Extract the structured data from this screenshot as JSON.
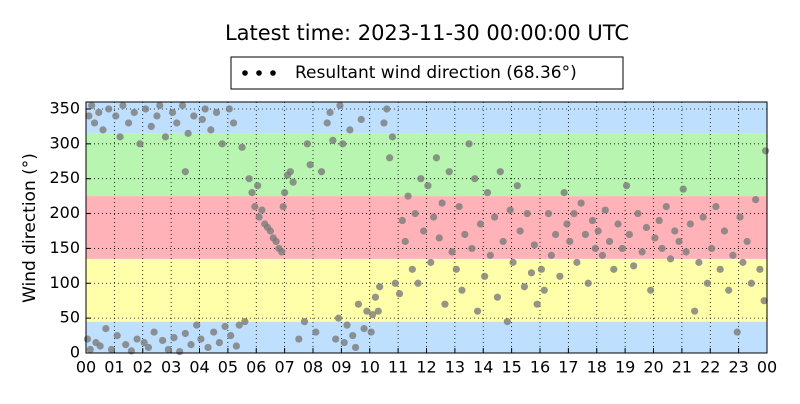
{
  "chart_data": {
    "type": "scatter",
    "title": "Latest time: 2023-11-30 00:00:00 UTC",
    "ylabel": "Wind direction (°)",
    "xlim": [
      0,
      24
    ],
    "ylim": [
      0,
      360
    ],
    "xticks": [
      {
        "value": 0,
        "label": "00"
      },
      {
        "value": 1,
        "label": "01"
      },
      {
        "value": 2,
        "label": "02"
      },
      {
        "value": 3,
        "label": "03"
      },
      {
        "value": 4,
        "label": "04"
      },
      {
        "value": 5,
        "label": "05"
      },
      {
        "value": 6,
        "label": "06"
      },
      {
        "value": 7,
        "label": "07"
      },
      {
        "value": 8,
        "label": "08"
      },
      {
        "value": 9,
        "label": "09"
      },
      {
        "value": 10,
        "label": "10"
      },
      {
        "value": 11,
        "label": "11"
      },
      {
        "value": 12,
        "label": "12"
      },
      {
        "value": 13,
        "label": "13"
      },
      {
        "value": 14,
        "label": "14"
      },
      {
        "value": 15,
        "label": "15"
      },
      {
        "value": 16,
        "label": "16"
      },
      {
        "value": 17,
        "label": "17"
      },
      {
        "value": 18,
        "label": "18"
      },
      {
        "value": 19,
        "label": "19"
      },
      {
        "value": 20,
        "label": "20"
      },
      {
        "value": 21,
        "label": "21"
      },
      {
        "value": 22,
        "label": "22"
      },
      {
        "value": 23,
        "label": "23"
      },
      {
        "value": 24,
        "label": "00"
      }
    ],
    "yticks": [
      0,
      50,
      100,
      150,
      200,
      250,
      300,
      350
    ],
    "grid": true,
    "bands": [
      {
        "range": [
          0,
          45
        ],
        "color": "#bfdfff"
      },
      {
        "range": [
          45,
          135
        ],
        "color": "#ffffaa"
      },
      {
        "range": [
          135,
          225
        ],
        "color": "#ffb3b8"
      },
      {
        "range": [
          225,
          315
        ],
        "color": "#b8f5b0"
      },
      {
        "range": [
          315,
          360
        ],
        "color": "#bfdfff"
      }
    ],
    "series": [
      {
        "name": "Resultant wind direction (68.36°)",
        "color": "#7a7a7a",
        "x": [
          0.05,
          0.1,
          0.15,
          0.2,
          0.3,
          0.35,
          0.45,
          0.5,
          0.6,
          0.7,
          0.8,
          0.9,
          1.05,
          1.1,
          1.2,
          1.3,
          1.4,
          1.5,
          1.6,
          1.7,
          1.8,
          1.9,
          2.05,
          2.1,
          2.2,
          2.3,
          2.4,
          2.5,
          2.6,
          2.7,
          2.8,
          2.9,
          3.05,
          3.1,
          3.2,
          3.3,
          3.4,
          3.5,
          3.6,
          3.7,
          3.8,
          3.9,
          3.5,
          4.05,
          4.1,
          4.2,
          4.3,
          4.4,
          4.5,
          4.6,
          4.7,
          4.8,
          4.9,
          5.05,
          5.1,
          5.2,
          5.3,
          5.4,
          5.5,
          5.6,
          5.75,
          5.85,
          5.95,
          6.05,
          6.1,
          6.2,
          6.3,
          6.4,
          6.5,
          6.6,
          6.7,
          6.8,
          6.9,
          6.95,
          7.0,
          7.1,
          7.2,
          7.3,
          7.5,
          7.7,
          7.8,
          7.9,
          8.1,
          8.3,
          8.5,
          8.6,
          8.7,
          8.8,
          8.9,
          8.95,
          9.05,
          9.1,
          9.2,
          9.3,
          9.4,
          9.5,
          9.6,
          9.7,
          9.8,
          9.9,
          10.05,
          10.1,
          10.2,
          10.3,
          10.35,
          10.5,
          10.6,
          10.7,
          10.8,
          10.9,
          11.05,
          11.15,
          11.25,
          11.35,
          11.5,
          11.6,
          11.7,
          11.8,
          11.9,
          12.05,
          12.15,
          12.25,
          12.35,
          12.45,
          12.55,
          12.65,
          12.8,
          12.9,
          13.05,
          13.15,
          13.25,
          13.35,
          13.5,
          13.6,
          13.7,
          13.8,
          13.9,
          14.05,
          14.15,
          14.25,
          14.4,
          14.5,
          14.6,
          14.7,
          14.85,
          14.95,
          15.05,
          15.2,
          15.3,
          15.45,
          15.55,
          15.7,
          15.8,
          15.9,
          16.05,
          16.15,
          16.3,
          16.4,
          16.55,
          16.7,
          16.85,
          16.95,
          17.05,
          17.2,
          17.3,
          17.45,
          17.6,
          17.7,
          17.85,
          17.95,
          18.05,
          18.2,
          18.3,
          18.45,
          18.6,
          18.75,
          18.9,
          19.05,
          19.15,
          19.3,
          19.45,
          19.6,
          19.75,
          19.9,
          20.05,
          20.2,
          20.3,
          20.45,
          20.6,
          20.75,
          20.9,
          21.05,
          21.15,
          21.3,
          21.45,
          21.6,
          21.75,
          21.9,
          22.05,
          22.2,
          22.35,
          22.5,
          22.65,
          22.8,
          22.95,
          23.05,
          23.15,
          23.3,
          23.45,
          23.6,
          23.75,
          23.9,
          23.95
        ],
        "y": [
          20,
          340,
          5,
          355,
          330,
          15,
          345,
          10,
          320,
          35,
          350,
          5,
          340,
          25,
          310,
          355,
          12,
          330,
          3,
          345,
          20,
          300,
          15,
          350,
          8,
          325,
          30,
          340,
          355,
          18,
          310,
          5,
          345,
          22,
          330,
          2,
          355,
          28,
          315,
          12,
          340,
          40,
          260,
          20,
          335,
          350,
          8,
          320,
          30,
          345,
          15,
          300,
          38,
          350,
          25,
          330,
          10,
          40,
          295,
          45,
          250,
          230,
          210,
          240,
          195,
          205,
          185,
          180,
          175,
          165,
          160,
          150,
          145,
          210,
          230,
          255,
          260,
          245,
          20,
          45,
          300,
          270,
          30,
          260,
          330,
          345,
          305,
          20,
          50,
          355,
          300,
          15,
          40,
          320,
          25,
          8,
          70,
          335,
          35,
          60,
          30,
          55,
          80,
          60,
          95,
          330,
          350,
          280,
          310,
          100,
          85,
          190,
          160,
          225,
          120,
          200,
          100,
          250,
          175,
          240,
          130,
          195,
          280,
          165,
          215,
          70,
          260,
          145,
          120,
          210,
          90,
          170,
          300,
          150,
          250,
          60,
          185,
          110,
          230,
          140,
          195,
          80,
          260,
          160,
          45,
          205,
          130,
          240,
          175,
          95,
          200,
          115,
          155,
          70,
          120,
          90,
          200,
          140,
          170,
          110,
          230,
          185,
          160,
          200,
          130,
          215,
          170,
          100,
          190,
          150,
          175,
          140,
          205,
          160,
          120,
          185,
          150,
          240,
          170,
          125,
          200,
          145,
          180,
          90,
          165,
          190,
          150,
          210,
          135,
          175,
          160,
          235,
          145,
          185,
          60,
          130,
          195,
          100,
          150,
          210,
          120,
          175,
          90,
          140,
          30,
          195,
          130,
          160,
          100,
          220,
          120,
          75,
          290
        ]
      }
    ]
  }
}
